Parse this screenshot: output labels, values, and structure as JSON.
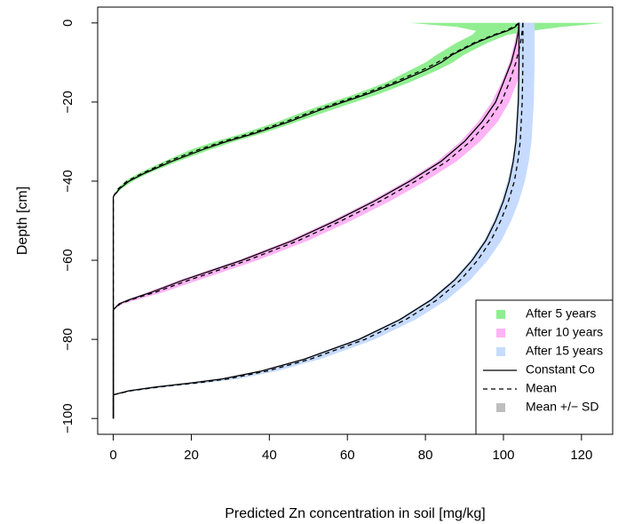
{
  "chart_data": {
    "type": "line",
    "title": "",
    "xlabel": "Predicted Zn concentration in soil [mg/kg]",
    "ylabel": "Depth [cm]",
    "xlim": [
      -4,
      128
    ],
    "ylim": [
      -104,
      4
    ],
    "xticks": [
      0,
      20,
      40,
      60,
      80,
      100,
      120
    ],
    "yticks": [
      0,
      -20,
      -40,
      -60,
      -80,
      -100
    ],
    "xtick_labels": [
      "0",
      "20",
      "40",
      "60",
      "80",
      "100",
      "120"
    ],
    "ytick_labels": [
      "0",
      "−20",
      "−40",
      "−60",
      "−80",
      "−100"
    ],
    "grid": false,
    "legend_position": "bottom-right",
    "legend": [
      {
        "label": "After 5 years",
        "kind": "fill",
        "color": "#90EE90"
      },
      {
        "label": "After 10 years",
        "kind": "fill",
        "color": "#FFB3F5"
      },
      {
        "label": "After 15 years",
        "kind": "fill",
        "color": "#C6DBFF"
      },
      {
        "label": "Constant Co",
        "kind": "solid",
        "color": "#000000"
      },
      {
        "label": "Mean",
        "kind": "dashed",
        "color": "#000000"
      },
      {
        "label": "Mean +/− SD",
        "kind": "fill",
        "color": "#BEBEBE"
      }
    ],
    "series": [
      {
        "name": "After 5 years",
        "color": "#90EE90",
        "depth": [
          0,
          -1,
          -2,
          -3,
          -5,
          -8,
          -10,
          -12,
          -15,
          -18,
          -20,
          -22,
          -25,
          -28,
          -30,
          -32,
          -35,
          -38,
          -40,
          -42,
          -43,
          -43.5,
          -44
        ],
        "constant_co": [
          104,
          103,
          101,
          98,
          93,
          87,
          84,
          80,
          73,
          65,
          59,
          53,
          45,
          36,
          29,
          23,
          15,
          8,
          4,
          1.5,
          0.8,
          0.3,
          0
        ],
        "mean": [
          104,
          102.5,
          100.5,
          97.5,
          92.5,
          86.5,
          83,
          79,
          72,
          64,
          58,
          52,
          44,
          35,
          28,
          22,
          14,
          7.5,
          3.5,
          1.2,
          0.6,
          0.2,
          0
        ],
        "sd_low": [
          76,
          88,
          93,
          92,
          88,
          83,
          80,
          76,
          70,
          62,
          56,
          50,
          42,
          33,
          26,
          20,
          13,
          6.5,
          3,
          1,
          0.5,
          0.2,
          0
        ],
        "sd_high": [
          126,
          115,
          107,
          101,
          96,
          90,
          87,
          83,
          76,
          68,
          62,
          56,
          47,
          38,
          31,
          25,
          16.5,
          9,
          5,
          2,
          1,
          0.4,
          0
        ]
      },
      {
        "name": "After 10 years",
        "color": "#FFB3F5",
        "depth": [
          0,
          -2,
          -5,
          -10,
          -15,
          -20,
          -25,
          -30,
          -35,
          -40,
          -45,
          -50,
          -55,
          -60,
          -65,
          -68,
          -70,
          -71,
          -72,
          -72.5
        ],
        "constant_co": [
          104,
          103.8,
          103.3,
          102,
          100,
          98,
          94.5,
          90,
          84,
          76,
          67,
          57,
          46,
          33,
          18,
          10,
          4,
          1.5,
          0.5,
          0
        ],
        "mean": [
          105,
          104.8,
          104.4,
          103.2,
          101.5,
          99.5,
          96,
          91.5,
          85.5,
          77.5,
          68.5,
          58.5,
          47.5,
          34.5,
          19.5,
          11,
          4.5,
          1.8,
          0.6,
          0
        ],
        "sd_low": [
          104,
          103.5,
          102.8,
          101.5,
          99.5,
          97,
          93.5,
          89,
          83,
          75,
          66,
          56,
          45,
          32,
          17,
          9,
          3.5,
          1.2,
          0.4,
          0
        ],
        "sd_high": [
          107,
          106.8,
          106.4,
          105,
          103.5,
          101.5,
          98.5,
          94,
          88,
          80,
          71,
          61,
          50,
          37,
          22,
          13,
          6,
          2.5,
          0.8,
          0
        ]
      },
      {
        "name": "After 15 years",
        "color": "#C6DBFF",
        "depth": [
          0,
          -5,
          -10,
          -20,
          -30,
          -35,
          -40,
          -45,
          -50,
          -55,
          -60,
          -65,
          -70,
          -75,
          -80,
          -85,
          -88,
          -90,
          -91,
          -92,
          -93,
          -94
        ],
        "constant_co": [
          104,
          104,
          104,
          103.8,
          103.2,
          102.5,
          101.5,
          100,
          98,
          95.5,
          92,
          87.5,
          81.5,
          73.5,
          63,
          49,
          38,
          28,
          20,
          11,
          4,
          0
        ],
        "mean": [
          105,
          105,
          105,
          104.8,
          104.3,
          103.7,
          102.8,
          101.3,
          99.3,
          96.8,
          93.4,
          89,
          83,
          75,
          64.5,
          50.5,
          39.5,
          29.5,
          21.5,
          12,
          4.5,
          0
        ],
        "sd_low": [
          104,
          104,
          104,
          103.6,
          103,
          102.2,
          101,
          99.5,
          97.5,
          95,
          91.5,
          87,
          81,
          73,
          62.5,
          48.5,
          37.5,
          27.5,
          19.5,
          10.5,
          3.5,
          0
        ],
        "sd_high": [
          108,
          108,
          108,
          107.8,
          107.2,
          106.5,
          105.5,
          104,
          102,
          99.5,
          96,
          91.5,
          85.5,
          77.5,
          67,
          53,
          42,
          32,
          24,
          14,
          6,
          0
        ]
      }
    ],
    "vertical_line": {
      "x": 0,
      "y_from": 0,
      "y_to": -100,
      "note": "lines continue to x=0 down to depth -100"
    }
  }
}
